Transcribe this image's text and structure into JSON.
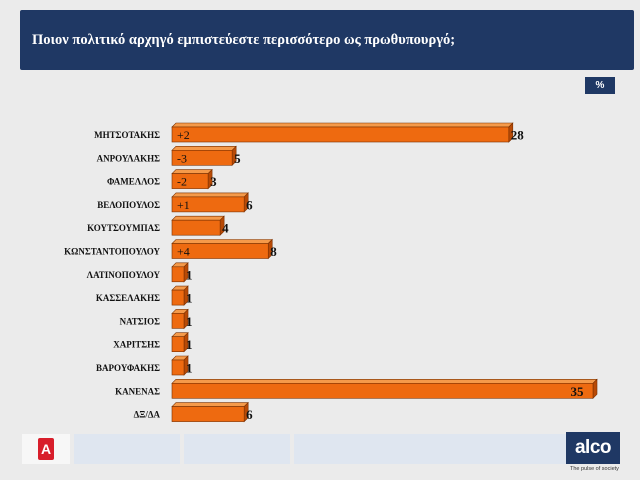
{
  "header": {
    "title": "Ποιον πολιτικό αρχηγό εμπιστεύεστε περισσότερο ως πρωθυπουργό;"
  },
  "unit_badge": "%",
  "footer": {
    "alco_logo": "alco",
    "alco_tagline": "The pulse of society",
    "alpha_logo": "A"
  },
  "colors": {
    "bar_front": "#ee6a10",
    "bar_top": "#f59a4a",
    "bar_side": "#b84a06",
    "header_bg": "#1f3864"
  },
  "chart_data": {
    "type": "bar",
    "orientation": "horizontal",
    "categories": [
      "ΜΗΤΣΟΤΑΚΗΣ",
      "ΑΝΡΟΥΛΑΚΗΣ",
      "ΦΑΜΕΛΛΟΣ",
      "ΒΕΛΟΠΟΥΛΟΣ",
      "ΚΟΥΤΣΟΥΜΠΑΣ",
      "ΚΩΝΣΤΑΝΤΟΠΟΥΛΟΥ",
      "ΛΑΤΙΝΟΠΟΥΛΟΥ",
      "ΚΑΣΣΕΛΑΚΗΣ",
      "ΝΑΤΣΙΟΣ",
      "ΧΑΡΙΤΣΗΣ",
      "ΒΑΡΟΥΦΑΚΗΣ",
      "ΚΑΝΕΝΑΣ",
      "ΔΞ/ΔΑ"
    ],
    "values": [
      28,
      5,
      3,
      6,
      4,
      8,
      1,
      1,
      1,
      1,
      1,
      35,
      6
    ],
    "value_labels": [
      "28",
      "5",
      "3",
      "6",
      "4",
      "8",
      "1",
      "1",
      "1",
      "1",
      "1",
      "35",
      "6"
    ],
    "changes": [
      "+2",
      "-3",
      "-2",
      "+1",
      "",
      "+4",
      "",
      "",
      "",
      "",
      "",
      "",
      ""
    ],
    "xlim": [
      0,
      35
    ],
    "grid": false,
    "legend": "none"
  }
}
